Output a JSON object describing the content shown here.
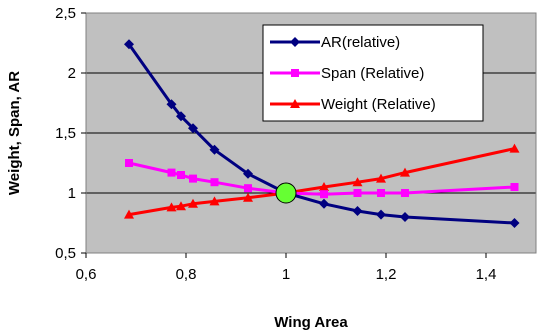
{
  "chart_data": {
    "type": "line",
    "xlabel": "Wing Area",
    "ylabel": "Weight, Span, AR",
    "xlim": [
      0.6,
      1.5
    ],
    "ylim": [
      0.5,
      2.5
    ],
    "xticks": [
      0.6,
      0.8,
      1.0,
      1.2,
      1.4
    ],
    "yticks": [
      0.5,
      1.0,
      1.5,
      2.0,
      2.5
    ],
    "xtick_labels": [
      "0,6",
      "0,8",
      "1",
      "1,2",
      "1,4"
    ],
    "ytick_labels": [
      "0,5",
      "1",
      "1,5",
      "2",
      "2,5"
    ],
    "grid": "horizontal",
    "plot_background": "#c0c0c0",
    "legend_position": "top-right",
    "series": [
      {
        "name": "AR(relative)",
        "color": "#000080",
        "marker": "diamond",
        "x": [
          0.686,
          0.771,
          0.79,
          0.814,
          0.857,
          0.924,
          1.0,
          1.076,
          1.143,
          1.19,
          1.238,
          1.457
        ],
        "y": [
          2.24,
          1.74,
          1.64,
          1.54,
          1.36,
          1.16,
          1.0,
          0.91,
          0.85,
          0.82,
          0.8,
          0.75
        ]
      },
      {
        "name": "Span (Relative)",
        "color": "#ff00ff",
        "marker": "square",
        "x": [
          0.686,
          0.771,
          0.79,
          0.814,
          0.857,
          0.924,
          1.0,
          1.076,
          1.143,
          1.19,
          1.238,
          1.457
        ],
        "y": [
          1.25,
          1.17,
          1.15,
          1.12,
          1.09,
          1.04,
          1.0,
          0.99,
          1.0,
          1.0,
          1.0,
          1.05
        ]
      },
      {
        "name": "Weight (Relative)",
        "color": "#ff0000",
        "marker": "triangle",
        "x": [
          0.686,
          0.771,
          0.79,
          0.814,
          0.857,
          0.924,
          1.0,
          1.076,
          1.143,
          1.19,
          1.238,
          1.457
        ],
        "y": [
          0.82,
          0.88,
          0.89,
          0.91,
          0.93,
          0.96,
          1.0,
          1.05,
          1.09,
          1.12,
          1.17,
          1.37
        ]
      }
    ],
    "highlight_point": {
      "x": 1.0,
      "y": 1.0,
      "color": "#66ff33"
    }
  }
}
